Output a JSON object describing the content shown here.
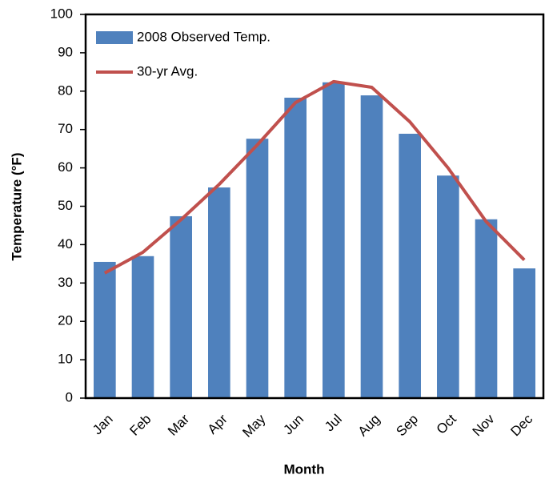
{
  "chart_data": {
    "type": "bar",
    "x_label": "Month",
    "y_label": "Temperature (°F)",
    "categories": [
      "Jan",
      "Feb",
      "Mar",
      "Apr",
      "May",
      "Jun",
      "Jul",
      "Aug",
      "Sep",
      "Oct",
      "Nov",
      "Dec"
    ],
    "series": [
      {
        "name": "2008 Observed Temp.",
        "type": "bar",
        "color": "#4f81bd",
        "values": [
          35.5,
          37,
          47.4,
          54.9,
          67.6,
          78.3,
          82.3,
          78.9,
          68.9,
          58,
          46.6,
          33.8
        ]
      },
      {
        "name": "30-yr Avg.",
        "type": "line",
        "color": "#c0504d",
        "values": [
          32.6,
          38,
          46.5,
          55.7,
          66,
          77,
          82.5,
          81,
          72,
          60,
          46,
          36
        ]
      }
    ],
    "ylim": [
      0,
      100
    ],
    "yticks": [
      0,
      10,
      20,
      30,
      40,
      50,
      60,
      70,
      80,
      90,
      100
    ],
    "legend": "upper left"
  }
}
